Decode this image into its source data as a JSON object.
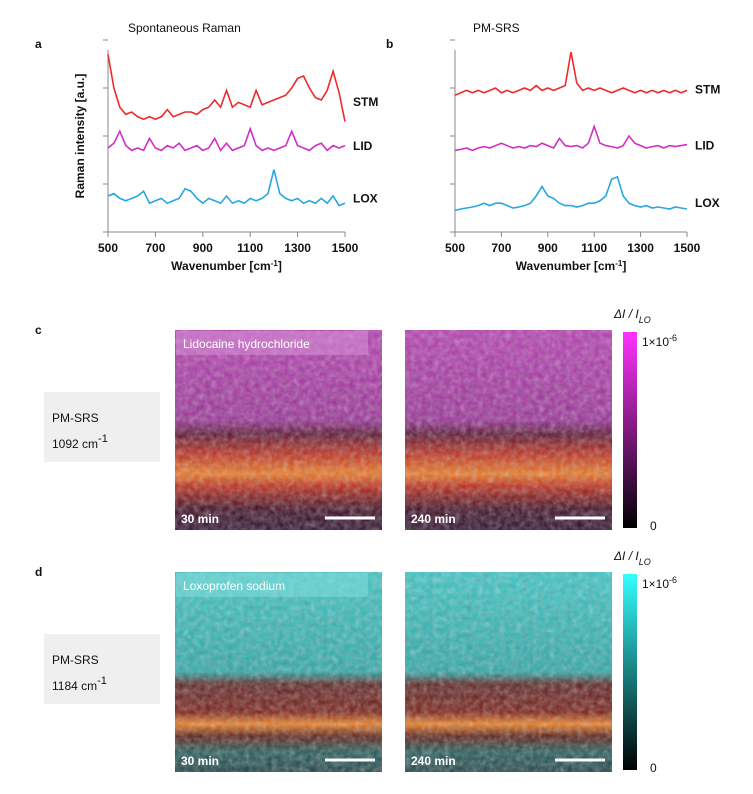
{
  "chart_data": [
    {
      "type": "line",
      "panel": "a",
      "title": "Spontaneous Raman",
      "xlabel": [
        "Wavenumber [cm",
        "-1",
        "]"
      ],
      "ylabel": "Raman intensity [a.u.]",
      "x": [
        500,
        525,
        550,
        575,
        600,
        625,
        650,
        675,
        700,
        725,
        750,
        775,
        800,
        825,
        850,
        875,
        900,
        925,
        950,
        975,
        1000,
        1025,
        1050,
        1075,
        1100,
        1125,
        1150,
        1175,
        1200,
        1225,
        1250,
        1275,
        1300,
        1325,
        1350,
        1375,
        1400,
        1425,
        1450,
        1475,
        1500
      ],
      "xlim": [
        500,
        1500
      ],
      "xticks": [
        500,
        700,
        900,
        1100,
        1300,
        1500
      ],
      "ylim": [
        0,
        4
      ],
      "yticks": [
        0,
        1,
        2,
        3,
        4
      ],
      "series": [
        {
          "name": "STM",
          "color": "#ee2a2a",
          "values": [
            3.7,
            3.0,
            2.6,
            2.45,
            2.5,
            2.4,
            2.35,
            2.4,
            2.35,
            2.4,
            2.55,
            2.4,
            2.45,
            2.5,
            2.5,
            2.45,
            2.55,
            2.6,
            2.75,
            2.6,
            2.95,
            2.6,
            2.7,
            2.65,
            2.6,
            2.95,
            2.65,
            2.7,
            2.75,
            2.8,
            2.85,
            3.0,
            3.2,
            3.25,
            3.0,
            2.8,
            2.75,
            2.95,
            3.35,
            2.9,
            2.3
          ]
        },
        {
          "name": "LID",
          "color": "#d12fc6",
          "values": [
            1.75,
            1.85,
            2.1,
            1.8,
            1.7,
            1.75,
            1.7,
            1.95,
            1.75,
            1.7,
            1.8,
            1.75,
            1.85,
            1.7,
            1.75,
            1.8,
            1.7,
            1.75,
            1.95,
            1.7,
            1.85,
            1.7,
            1.75,
            1.8,
            2.15,
            1.8,
            1.7,
            1.75,
            1.7,
            1.75,
            1.8,
            2.1,
            1.8,
            1.75,
            1.7,
            1.8,
            1.85,
            1.7,
            1.8,
            1.75,
            1.8
          ]
        },
        {
          "name": "LOX",
          "color": "#27a7df",
          "values": [
            0.75,
            0.8,
            0.7,
            0.65,
            0.7,
            0.75,
            0.85,
            0.6,
            0.65,
            0.7,
            0.6,
            0.65,
            0.7,
            0.9,
            0.85,
            0.7,
            0.6,
            0.7,
            0.65,
            0.6,
            0.75,
            0.6,
            0.65,
            0.6,
            0.7,
            0.65,
            0.7,
            0.8,
            1.3,
            0.8,
            0.7,
            0.65,
            0.7,
            0.6,
            0.65,
            0.6,
            0.7,
            0.6,
            0.75,
            0.55,
            0.6
          ]
        }
      ]
    },
    {
      "type": "line",
      "panel": "b",
      "title": "PM-SRS",
      "xlabel": [
        "Wavenumber [cm",
        "-1",
        "]"
      ],
      "x": [
        500,
        525,
        550,
        575,
        600,
        625,
        650,
        675,
        700,
        725,
        750,
        775,
        800,
        825,
        850,
        875,
        900,
        925,
        950,
        975,
        1000,
        1025,
        1050,
        1075,
        1100,
        1125,
        1150,
        1175,
        1200,
        1225,
        1250,
        1275,
        1300,
        1325,
        1350,
        1375,
        1400,
        1425,
        1450,
        1475,
        1500
      ],
      "xlim": [
        500,
        1500
      ],
      "xticks": [
        500,
        700,
        900,
        1100,
        1300,
        1500
      ],
      "ylim": [
        0,
        4
      ],
      "yticks": [
        0,
        1,
        2,
        3,
        4
      ],
      "series": [
        {
          "name": "STM",
          "color": "#ee2a2a",
          "values": [
            2.85,
            2.9,
            2.95,
            2.9,
            2.95,
            2.9,
            2.95,
            3.0,
            2.9,
            2.95,
            2.9,
            2.95,
            3.0,
            2.95,
            3.05,
            2.95,
            3.0,
            2.95,
            3.0,
            3.05,
            3.75,
            3.1,
            2.95,
            3.0,
            2.95,
            3.0,
            2.95,
            2.9,
            2.95,
            3.0,
            2.95,
            2.9,
            2.95,
            2.9,
            2.95,
            2.9,
            2.95,
            2.9,
            2.95,
            2.9,
            2.95
          ]
        },
        {
          "name": "LID",
          "color": "#d12fc6",
          "values": [
            1.7,
            1.72,
            1.75,
            1.7,
            1.75,
            1.78,
            1.75,
            1.8,
            1.85,
            1.8,
            1.75,
            1.78,
            1.75,
            1.8,
            1.78,
            1.85,
            1.8,
            1.75,
            1.95,
            1.8,
            1.78,
            1.8,
            1.75,
            1.85,
            2.2,
            1.85,
            1.8,
            1.78,
            1.75,
            1.8,
            2.0,
            1.85,
            1.8,
            1.75,
            1.78,
            1.8,
            1.75,
            1.8,
            1.78,
            1.8,
            1.82
          ]
        },
        {
          "name": "LOX",
          "color": "#27a7df",
          "values": [
            0.45,
            0.48,
            0.5,
            0.52,
            0.55,
            0.6,
            0.55,
            0.6,
            0.6,
            0.55,
            0.5,
            0.52,
            0.55,
            0.6,
            0.75,
            0.95,
            0.75,
            0.7,
            0.6,
            0.55,
            0.55,
            0.52,
            0.55,
            0.6,
            0.6,
            0.65,
            0.75,
            1.1,
            1.15,
            0.75,
            0.6,
            0.55,
            0.52,
            0.55,
            0.5,
            0.52,
            0.5,
            0.48,
            0.52,
            0.5,
            0.48
          ]
        }
      ]
    }
  ],
  "image_panels": [
    {
      "label": "c",
      "box": [
        "PM-SRS",
        "1092 cm",
        "-1"
      ],
      "title": "Lidocaine hydrochloride",
      "times": [
        "30 min",
        "240 min"
      ],
      "colorbar": {
        "title": [
          "ΔI / I",
          "LO"
        ],
        "max": [
          "1×10",
          "-6"
        ],
        "min": "0"
      }
    },
    {
      "label": "d",
      "box": [
        "PM-SRS",
        "1184 cm",
        "-1"
      ],
      "title": "Loxoprofen sodium",
      "times": [
        "30 min",
        "240 min"
      ],
      "colorbar": {
        "title": [
          "ΔI / I",
          "LO"
        ],
        "max": [
          "1×10",
          "-6"
        ],
        "min": "0"
      }
    }
  ]
}
